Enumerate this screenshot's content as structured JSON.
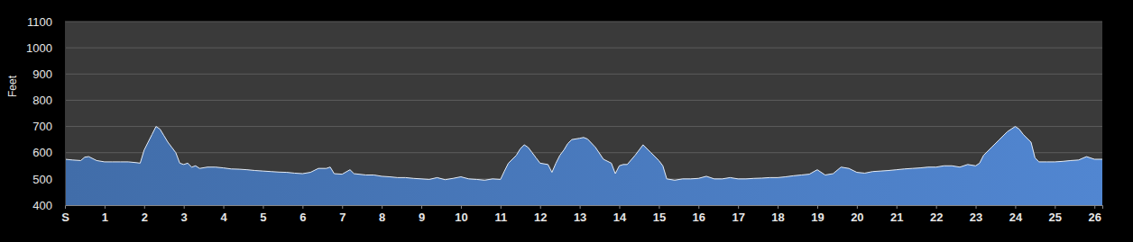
{
  "chart_data": {
    "type": "area",
    "y_label": "Feet",
    "color": "#4a7bbf",
    "grid": true,
    "xlim": [
      0,
      26.2
    ],
    "xticks": [
      {
        "value": 0,
        "label": "S"
      },
      1,
      2,
      3,
      4,
      5,
      6,
      7,
      8,
      9,
      10,
      11,
      12,
      13,
      14,
      15,
      16,
      17,
      18,
      19,
      20,
      21,
      22,
      23,
      24,
      25,
      26
    ],
    "ylim": [
      400,
      1100
    ],
    "yticks": [
      400,
      500,
      600,
      700,
      800,
      900,
      1000,
      1100
    ],
    "x": [
      0,
      0.2,
      0.4,
      0.5,
      0.6,
      0.8,
      1.0,
      1.2,
      1.4,
      1.6,
      1.8,
      1.9,
      2.0,
      2.1,
      2.2,
      2.3,
      2.4,
      2.5,
      2.6,
      2.7,
      2.8,
      2.9,
      3.0,
      3.1,
      3.2,
      3.3,
      3.4,
      3.6,
      3.8,
      4.0,
      4.2,
      4.4,
      4.6,
      4.8,
      5.0,
      5.2,
      5.4,
      5.6,
      5.8,
      6.0,
      6.2,
      6.4,
      6.6,
      6.7,
      6.8,
      7.0,
      7.2,
      7.3,
      7.6,
      7.8,
      8.0,
      8.2,
      8.4,
      8.6,
      8.8,
      9.0,
      9.2,
      9.4,
      9.6,
      9.8,
      10.0,
      10.2,
      10.4,
      10.6,
      10.8,
      11.0,
      11.1,
      11.2,
      11.4,
      11.5,
      11.6,
      11.7,
      11.8,
      11.9,
      12.0,
      12.2,
      12.3,
      12.4,
      12.5,
      12.6,
      12.7,
      12.8,
      13.0,
      13.1,
      13.2,
      13.4,
      13.6,
      13.8,
      13.9,
      14.0,
      14.1,
      14.2,
      14.4,
      14.6,
      14.8,
      15.0,
      15.1,
      15.2,
      15.4,
      15.6,
      15.8,
      16.0,
      16.2,
      16.4,
      16.6,
      16.8,
      17.0,
      17.2,
      17.4,
      17.6,
      17.8,
      18.0,
      18.2,
      18.4,
      18.6,
      18.8,
      19.0,
      19.2,
      19.4,
      19.6,
      19.8,
      20.0,
      20.2,
      20.4,
      20.6,
      20.8,
      21.0,
      21.2,
      21.4,
      21.6,
      21.8,
      22.0,
      22.2,
      22.4,
      22.6,
      22.8,
      23.0,
      23.1,
      23.2,
      23.4,
      23.6,
      23.8,
      24.0,
      24.1,
      24.2,
      24.4,
      24.5,
      24.6,
      24.8,
      25.0,
      25.2,
      25.4,
      25.6,
      25.8,
      26.0,
      26.2
    ],
    "values": [
      575,
      572,
      570,
      583,
      585,
      570,
      565,
      565,
      565,
      565,
      562,
      560,
      610,
      640,
      670,
      700,
      690,
      665,
      640,
      620,
      600,
      560,
      555,
      560,
      545,
      550,
      540,
      545,
      545,
      542,
      538,
      537,
      535,
      532,
      530,
      528,
      526,
      525,
      522,
      520,
      525,
      540,
      540,
      545,
      520,
      518,
      535,
      520,
      515,
      515,
      510,
      508,
      505,
      505,
      502,
      500,
      498,
      505,
      497,
      502,
      508,
      500,
      498,
      495,
      500,
      498,
      530,
      560,
      590,
      615,
      630,
      620,
      600,
      580,
      560,
      555,
      525,
      560,
      590,
      610,
      635,
      650,
      655,
      658,
      652,
      620,
      575,
      560,
      520,
      550,
      555,
      555,
      590,
      630,
      600,
      570,
      550,
      500,
      495,
      500,
      500,
      502,
      510,
      500,
      500,
      505,
      500,
      500,
      502,
      503,
      505,
      505,
      508,
      512,
      515,
      518,
      535,
      515,
      520,
      545,
      540,
      525,
      522,
      528,
      530,
      532,
      535,
      538,
      540,
      542,
      545,
      545,
      550,
      550,
      545,
      555,
      550,
      560,
      590,
      620,
      650,
      680,
      700,
      690,
      670,
      640,
      580,
      565,
      565,
      565,
      567,
      570,
      572,
      585,
      575,
      575
    ]
  }
}
